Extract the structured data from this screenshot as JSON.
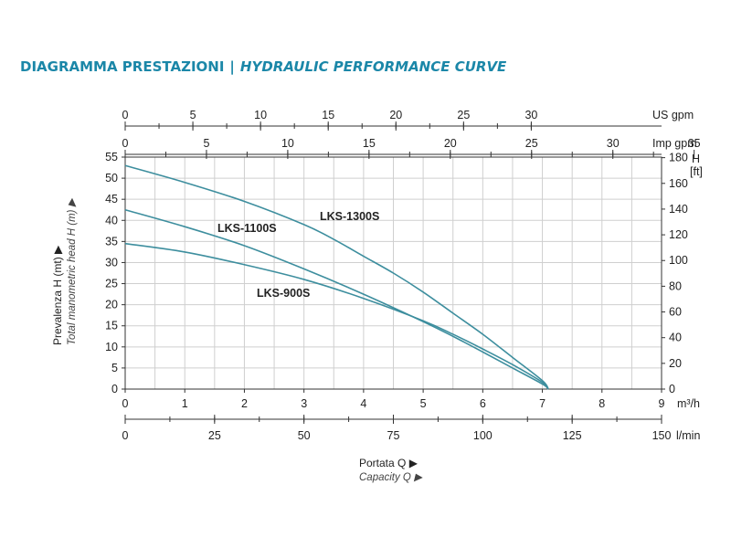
{
  "header": {
    "title_it": "DIAGRAMMA PRESTAZIONI",
    "separator": "|",
    "title_en": "HYDRAULIC PERFORMANCE CURVE"
  },
  "colors": {
    "curve": "#3d8e9e",
    "grid": "#cfcfcf",
    "axis": "#333333",
    "title": "#1b87a8"
  },
  "chart_data": {
    "type": "line",
    "title": "DIAGRAMMA PRESTAZIONI | HYDRAULIC PERFORMANCE CURVE",
    "xlabel": "Portata Q",
    "xlabel_sub": "Capacity Q",
    "ylabel": "Prevalenza H (mt)",
    "ylabel_sub": "Total manometric head H (m)",
    "x_unit": "m³/h",
    "xlim": [
      0,
      9
    ],
    "ylim": [
      0,
      55
    ],
    "x_ticks": [
      0,
      1,
      2,
      3,
      4,
      5,
      6,
      7,
      8,
      9
    ],
    "y_ticks": [
      0,
      5,
      10,
      15,
      20,
      25,
      30,
      35,
      40,
      45,
      50,
      55
    ],
    "grid": true,
    "secondary_axes": {
      "us_gpm": {
        "label": "US gpm",
        "ticks": [
          0,
          5,
          10,
          15,
          20,
          25,
          30
        ]
      },
      "imp_gpm": {
        "label": "Imp gpm",
        "ticks": [
          0,
          5,
          10,
          15,
          20,
          25,
          30,
          35
        ]
      },
      "ft": {
        "label_top": "H",
        "label_unit": "[ft]",
        "ticks": [
          0,
          20,
          40,
          60,
          80,
          100,
          120,
          140,
          160,
          180
        ]
      },
      "lmin": {
        "label": "l/min",
        "ticks": [
          0,
          25,
          50,
          75,
          100,
          125,
          150
        ]
      }
    },
    "series": [
      {
        "name": "LKS-1300S",
        "x": [
          0,
          1,
          2,
          3,
          3.5,
          4,
          4.5,
          5,
          5.5,
          6,
          6.5,
          7,
          7.1
        ],
        "y": [
          53,
          49,
          44.5,
          39,
          35.5,
          31.5,
          27.5,
          23,
          18,
          13,
          7.5,
          2,
          0
        ]
      },
      {
        "name": "LKS-1100S",
        "x": [
          0,
          1,
          2,
          3,
          4,
          5,
          5.5,
          6,
          6.5,
          7,
          7.1
        ],
        "y": [
          42.5,
          38.5,
          34,
          28.5,
          22.5,
          16,
          12.5,
          8.8,
          5,
          1.2,
          0
        ]
      },
      {
        "name": "LKS-900S",
        "x": [
          0,
          1,
          2,
          3,
          4,
          5,
          5.5,
          6,
          6.5,
          7,
          7.1
        ],
        "y": [
          34.5,
          32.5,
          29.5,
          26,
          21.5,
          16.2,
          13,
          9.5,
          5.8,
          1.6,
          0
        ]
      }
    ],
    "labels": [
      {
        "series": "LKS-1300S",
        "text": "LKS-1300S"
      },
      {
        "series": "LKS-1100S",
        "text": "LKS-1100S"
      },
      {
        "series": "LKS-900S",
        "text": "LKS-900S"
      }
    ]
  }
}
